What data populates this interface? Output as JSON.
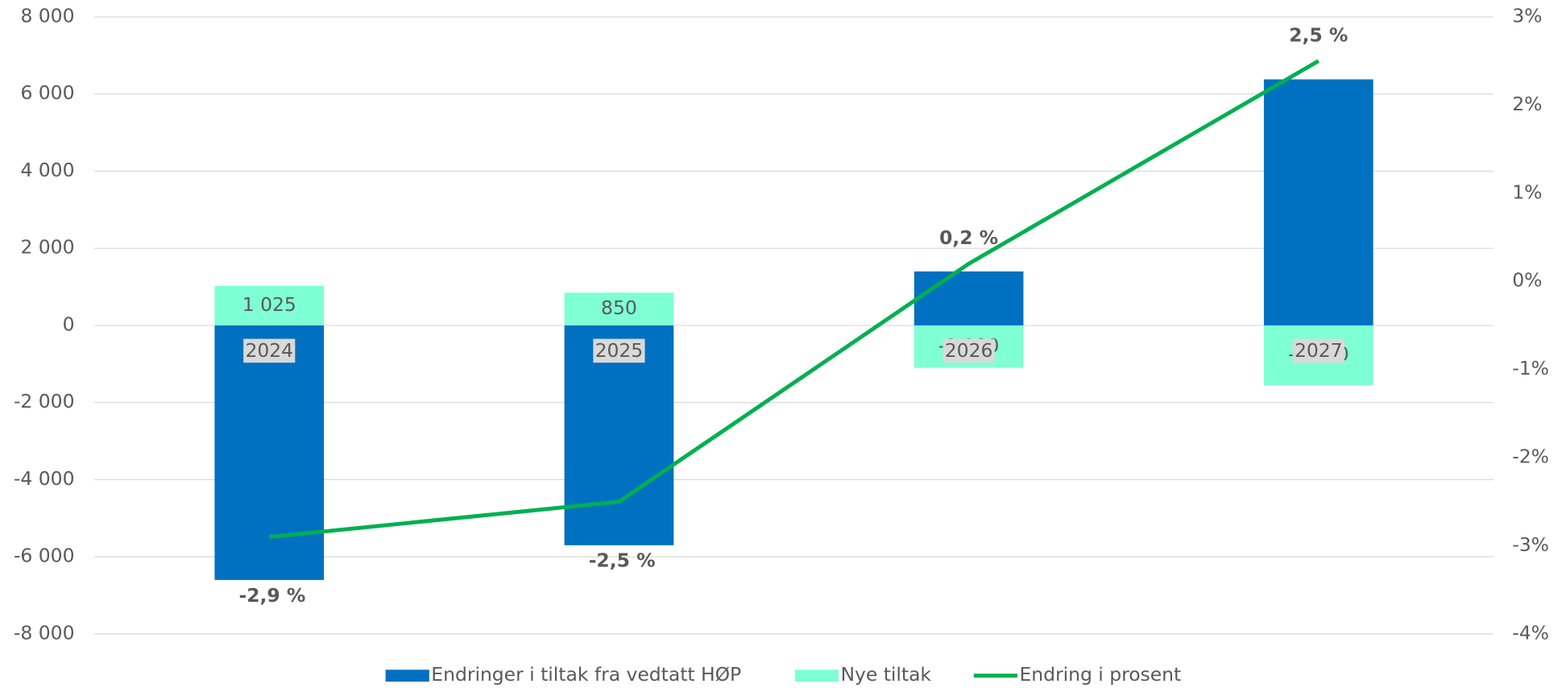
{
  "chart_data": {
    "type": "bar",
    "stacked": true,
    "categories": [
      "2024",
      "2025",
      "2026",
      "2027"
    ],
    "series": [
      {
        "name": "Endringer i tiltak fra vedtatt HØP",
        "color": "#0070c0",
        "values": [
          -6600,
          -5700,
          1400,
          6380
        ]
      },
      {
        "name": "Nye tiltak",
        "color": "#7fffd4",
        "values": [
          1025,
          850,
          -1100,
          -1550
        ],
        "value_labels": [
          "1 025",
          "850",
          "-1 100",
          "-1 550"
        ]
      },
      {
        "name": "Endring i prosent",
        "type": "line",
        "axis": "y2",
        "color": "#00b050",
        "values": [
          -2.9,
          -2.5,
          0.2,
          2.5
        ],
        "value_labels": [
          "-2,9 %",
          "-2,5 %",
          "0,2 %",
          "2,5 %"
        ]
      }
    ],
    "ylim": [
      -8000,
      8000
    ],
    "yticks": [
      {
        "value": -8000,
        "label": "-8 000"
      },
      {
        "value": -6000,
        "label": "-6 000"
      },
      {
        "value": -4000,
        "label": "-4 000"
      },
      {
        "value": -2000,
        "label": "-2 000"
      },
      0,
      {
        "value": 2000,
        "label": "2 000"
      },
      {
        "value": 4000,
        "label": "4 000"
      },
      {
        "value": 6000,
        "label": "6 000"
      },
      {
        "value": 8000,
        "label": "8 000"
      }
    ],
    "y2lim": [
      -4,
      3
    ],
    "y2ticks": [
      {
        "value": -4,
        "label": "-4%"
      },
      {
        "value": -3,
        "label": "-3%"
      },
      {
        "value": -2,
        "label": "-2%"
      },
      {
        "value": -1,
        "label": "-1%"
      },
      {
        "value": 0,
        "label": "0%"
      },
      {
        "value": 1,
        "label": "1%"
      },
      {
        "value": 2,
        "label": "2%"
      },
      {
        "value": 3,
        "label": "3%"
      }
    ],
    "grid": true,
    "legend": "bottom"
  }
}
